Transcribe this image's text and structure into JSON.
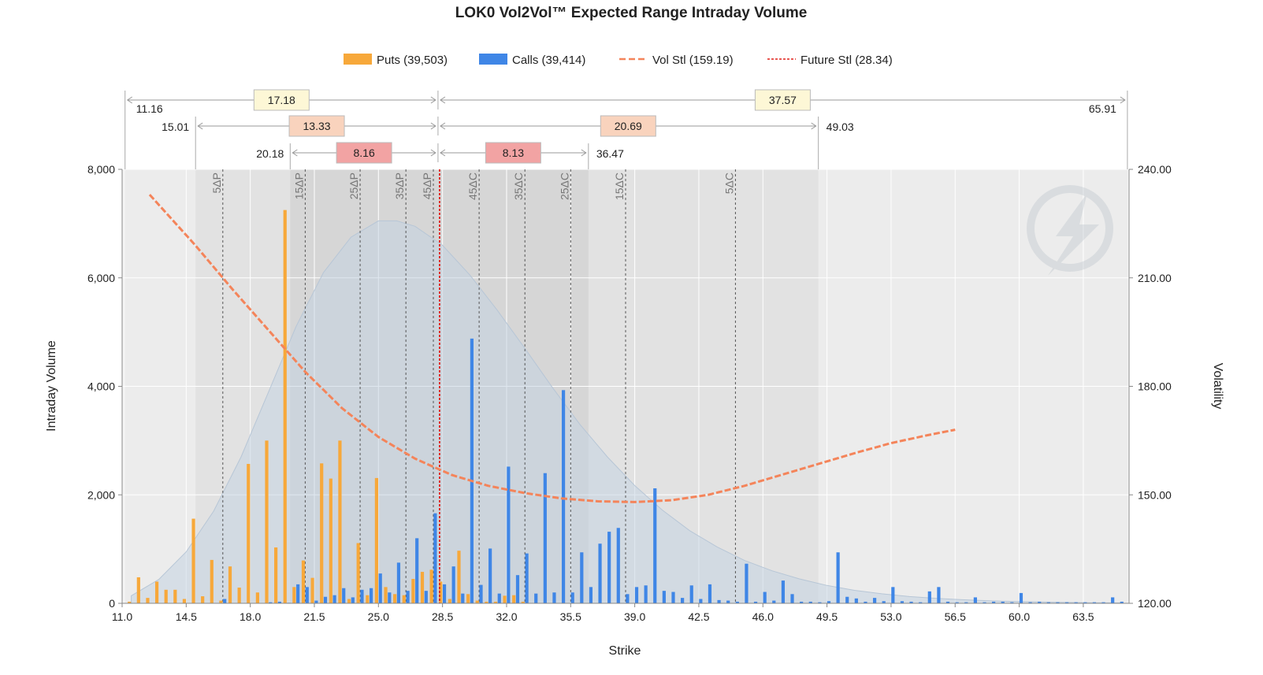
{
  "title": "LOK0 Vol2Vol™ Expected Range Intraday Volume",
  "legend": {
    "puts": "Puts (39,503)",
    "calls": "Calls (39,414)",
    "vol": "Vol Stl (159.19)",
    "future": "Future Stl (28.34)"
  },
  "axes": {
    "xlabel": "Strike",
    "ylabel": "Intraday Volume",
    "y2label": "Volatility",
    "xlim": [
      11.0,
      66.0
    ],
    "ylim": [
      0,
      8000
    ],
    "y2lim": [
      120,
      240
    ],
    "xticks": [
      "11.0",
      "14.5",
      "18.0",
      "21.5",
      "25.0",
      "28.5",
      "32.0",
      "35.5",
      "39.0",
      "42.5",
      "46.0",
      "49.5",
      "53.0",
      "56.5",
      "60.0",
      "63.5"
    ],
    "yticks": [
      "0",
      "2,000",
      "4,000",
      "6,000",
      "8,000"
    ],
    "y2ticks": [
      "120.00",
      "150.00",
      "180.00",
      "210.00",
      "240.00"
    ]
  },
  "colors": {
    "puts": "#f7a83a",
    "calls": "#3f86e6",
    "vol": "#f4845a",
    "future": "#e0201a",
    "distribution": "#c5d3e2"
  },
  "chart_data": {
    "type": "bar",
    "future_strike": 28.34,
    "series": [
      {
        "name": "Puts",
        "points": [
          [
            11.5,
            30
          ],
          [
            12.0,
            480
          ],
          [
            12.5,
            100
          ],
          [
            13.0,
            400
          ],
          [
            13.5,
            250
          ],
          [
            14.0,
            250
          ],
          [
            14.5,
            80
          ],
          [
            15.0,
            1560
          ],
          [
            15.5,
            130
          ],
          [
            16.0,
            800
          ],
          [
            16.5,
            50
          ],
          [
            17.0,
            680
          ],
          [
            17.5,
            290
          ],
          [
            18.0,
            2570
          ],
          [
            18.5,
            200
          ],
          [
            19.0,
            3000
          ],
          [
            19.5,
            1030
          ],
          [
            20.0,
            7250
          ],
          [
            20.5,
            300
          ],
          [
            21.0,
            790
          ],
          [
            21.5,
            470
          ],
          [
            22.0,
            2580
          ],
          [
            22.5,
            2300
          ],
          [
            23.0,
            3000
          ],
          [
            23.5,
            80
          ],
          [
            24.0,
            1110
          ],
          [
            24.5,
            150
          ],
          [
            25.0,
            2310
          ],
          [
            25.5,
            300
          ],
          [
            26.0,
            170
          ],
          [
            26.5,
            150
          ],
          [
            27.0,
            450
          ],
          [
            27.5,
            580
          ],
          [
            28.0,
            620
          ],
          [
            28.5,
            400
          ],
          [
            29.0,
            80
          ],
          [
            29.5,
            970
          ],
          [
            30.0,
            170
          ],
          [
            30.5,
            50
          ],
          [
            31.0,
            30
          ],
          [
            31.5,
            30
          ],
          [
            32.0,
            140
          ],
          [
            32.5,
            150
          ],
          [
            33.0,
            30
          ]
        ]
      },
      {
        "name": "Calls",
        "points": [
          [
            16.5,
            80
          ],
          [
            19.0,
            20
          ],
          [
            19.5,
            30
          ],
          [
            20.0,
            10
          ],
          [
            20.5,
            350
          ],
          [
            21.0,
            300
          ],
          [
            21.5,
            50
          ],
          [
            22.0,
            120
          ],
          [
            22.5,
            150
          ],
          [
            23.0,
            280
          ],
          [
            23.5,
            110
          ],
          [
            24.0,
            250
          ],
          [
            24.5,
            280
          ],
          [
            25.0,
            550
          ],
          [
            25.5,
            200
          ],
          [
            26.0,
            750
          ],
          [
            26.5,
            230
          ],
          [
            27.0,
            1200
          ],
          [
            27.5,
            230
          ],
          [
            28.0,
            1660
          ],
          [
            28.5,
            350
          ],
          [
            29.0,
            680
          ],
          [
            29.5,
            180
          ],
          [
            30.0,
            4880
          ],
          [
            30.5,
            340
          ],
          [
            31.0,
            1010
          ],
          [
            31.5,
            180
          ],
          [
            32.0,
            2520
          ],
          [
            32.5,
            520
          ],
          [
            33.0,
            920
          ],
          [
            33.5,
            180
          ],
          [
            34.0,
            2400
          ],
          [
            34.5,
            200
          ],
          [
            35.0,
            3930
          ],
          [
            35.5,
            200
          ],
          [
            36.0,
            940
          ],
          [
            36.5,
            300
          ],
          [
            37.0,
            1100
          ],
          [
            37.5,
            1320
          ],
          [
            38.0,
            1390
          ],
          [
            38.5,
            170
          ],
          [
            39.0,
            300
          ],
          [
            39.5,
            330
          ],
          [
            40.0,
            2120
          ],
          [
            40.5,
            230
          ],
          [
            41.0,
            210
          ],
          [
            41.5,
            100
          ],
          [
            42.0,
            330
          ],
          [
            42.5,
            80
          ],
          [
            43.0,
            350
          ],
          [
            43.5,
            60
          ],
          [
            44.0,
            50
          ],
          [
            44.5,
            30
          ],
          [
            45.0,
            730
          ],
          [
            45.5,
            30
          ],
          [
            46.0,
            210
          ],
          [
            46.5,
            50
          ],
          [
            47.0,
            420
          ],
          [
            47.5,
            170
          ],
          [
            48.0,
            30
          ],
          [
            48.5,
            30
          ],
          [
            49.0,
            20
          ],
          [
            49.5,
            40
          ],
          [
            50.0,
            940
          ],
          [
            50.5,
            120
          ],
          [
            51.0,
            90
          ],
          [
            51.5,
            30
          ],
          [
            52.0,
            100
          ],
          [
            52.5,
            40
          ],
          [
            53.0,
            300
          ],
          [
            53.5,
            40
          ],
          [
            54.0,
            30
          ],
          [
            54.5,
            20
          ],
          [
            55.0,
            220
          ],
          [
            55.5,
            300
          ],
          [
            56.0,
            30
          ],
          [
            56.5,
            20
          ],
          [
            57.0,
            20
          ],
          [
            57.5,
            110
          ],
          [
            58.0,
            20
          ],
          [
            58.5,
            30
          ],
          [
            59.0,
            30
          ],
          [
            59.5,
            20
          ],
          [
            60.0,
            190
          ],
          [
            60.5,
            20
          ],
          [
            61.0,
            30
          ],
          [
            61.5,
            20
          ],
          [
            62.0,
            20
          ],
          [
            62.5,
            20
          ],
          [
            63.0,
            20
          ],
          [
            63.5,
            20
          ],
          [
            64.0,
            20
          ],
          [
            64.5,
            20
          ],
          [
            65.0,
            110
          ],
          [
            65.5,
            30
          ]
        ]
      },
      {
        "name": "Vol Stl",
        "type": "line",
        "axis": "right",
        "points": [
          [
            12.5,
            233
          ],
          [
            15.0,
            219
          ],
          [
            17.0,
            207
          ],
          [
            19.0,
            195.5
          ],
          [
            21.0,
            184
          ],
          [
            23.0,
            174
          ],
          [
            25.0,
            166
          ],
          [
            27.0,
            160
          ],
          [
            29.0,
            155.5
          ],
          [
            31.0,
            152.5
          ],
          [
            33.0,
            150.5
          ],
          [
            35.0,
            149
          ],
          [
            37.0,
            148.2
          ],
          [
            39.0,
            148
          ],
          [
            41.0,
            148.5
          ],
          [
            43.0,
            150
          ],
          [
            45.0,
            152.5
          ],
          [
            47.0,
            155.5
          ],
          [
            49.0,
            158.5
          ],
          [
            51.0,
            161.5
          ],
          [
            53.0,
            164.3
          ],
          [
            55.0,
            166.5
          ],
          [
            56.5,
            168
          ]
        ]
      },
      {
        "name": "Distribution",
        "type": "area",
        "peak_strike": 26.0,
        "points": [
          [
            11.5,
            140
          ],
          [
            13.0,
            440
          ],
          [
            14.5,
            950
          ],
          [
            16.0,
            1700
          ],
          [
            17.5,
            2700
          ],
          [
            19.0,
            3900
          ],
          [
            20.5,
            5100
          ],
          [
            22.0,
            6100
          ],
          [
            23.5,
            6750
          ],
          [
            25.0,
            7050
          ],
          [
            26.0,
            7050
          ],
          [
            27.0,
            6950
          ],
          [
            28.5,
            6600
          ],
          [
            30.0,
            6050
          ],
          [
            31.5,
            5400
          ],
          [
            33.0,
            4700
          ],
          [
            34.5,
            3980
          ],
          [
            36.0,
            3300
          ],
          [
            37.5,
            2700
          ],
          [
            39.0,
            2170
          ],
          [
            40.5,
            1720
          ],
          [
            42.0,
            1340
          ],
          [
            43.5,
            1040
          ],
          [
            45.0,
            790
          ],
          [
            46.5,
            600
          ],
          [
            48.0,
            450
          ],
          [
            49.5,
            330
          ],
          [
            51.0,
            240
          ],
          [
            52.5,
            175
          ],
          [
            54.0,
            125
          ],
          [
            55.5,
            90
          ],
          [
            57.0,
            65
          ],
          [
            58.5,
            45
          ],
          [
            60.0,
            32
          ],
          [
            62.0,
            20
          ],
          [
            64.0,
            12
          ],
          [
            65.5,
            8
          ]
        ]
      }
    ],
    "delta_lines": [
      {
        "label": "5ΔP",
        "x": 16.5
      },
      {
        "label": "15ΔP",
        "x": 21.0
      },
      {
        "label": "25ΔP",
        "x": 24.0
      },
      {
        "label": "35ΔP",
        "x": 26.5
      },
      {
        "label": "45ΔP",
        "x": 28.0
      },
      {
        "label": "45ΔC",
        "x": 30.5
      },
      {
        "label": "35ΔC",
        "x": 33.0
      },
      {
        "label": "25ΔC",
        "x": 35.5
      },
      {
        "label": "15ΔC",
        "x": 38.5
      },
      {
        "label": "5ΔC",
        "x": 44.5
      }
    ],
    "expected_ranges": [
      {
        "low": 11.16,
        "high": 65.91,
        "down": "17.18",
        "up": "37.57",
        "low_label": "11.16",
        "high_label": "65.91",
        "fill": "#fdf7d6",
        "band": "#ececec"
      },
      {
        "low": 15.01,
        "high": 49.03,
        "down": "13.33",
        "up": "20.69",
        "low_label": "15.01",
        "high_label": "49.03",
        "fill": "#f9d3bd",
        "band": "#e2e2e2"
      },
      {
        "low": 20.18,
        "high": 36.47,
        "down": "8.16",
        "up": "8.13",
        "low_label": "20.18",
        "high_label": "36.47",
        "fill": "#f2a3a3",
        "band": "#d6d6d6"
      }
    ]
  }
}
